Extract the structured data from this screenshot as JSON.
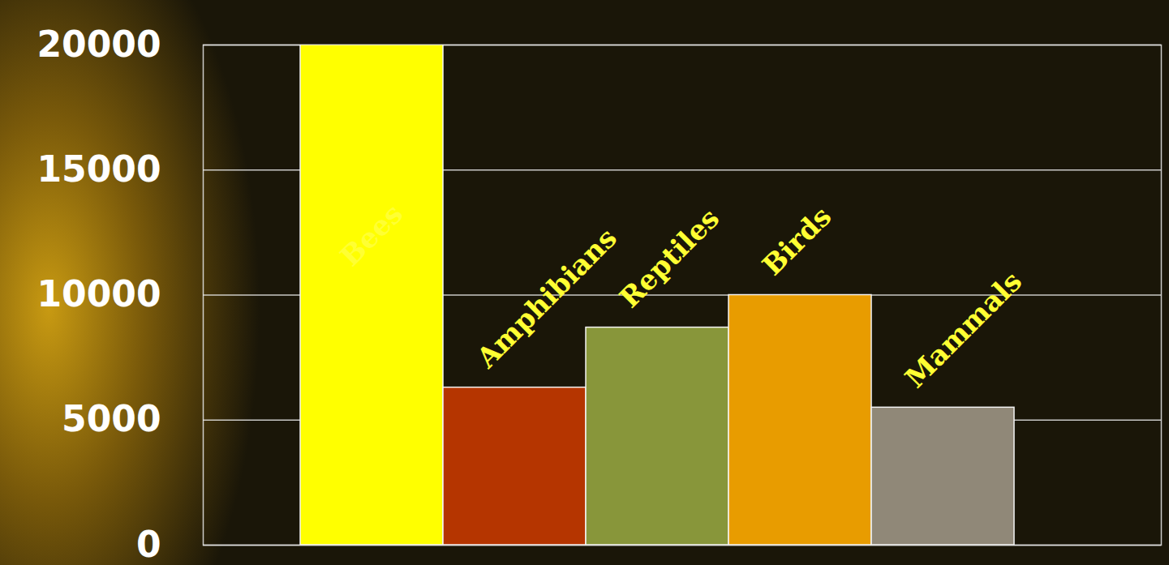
{
  "chart_data": {
    "type": "bar",
    "categories": [
      "Bees",
      "Amphibians",
      "Reptiles",
      "Birds",
      "Mammals"
    ],
    "values": [
      20000,
      6300,
      8700,
      10000,
      5500
    ],
    "colors": [
      "#ffff00",
      "#b53500",
      "#88963a",
      "#e89c00",
      "#908878"
    ],
    "ylim": [
      0,
      20000
    ],
    "yticks": [
      0,
      5000,
      10000,
      15000,
      20000
    ],
    "grid": true,
    "tick_labels": "y"
  }
}
